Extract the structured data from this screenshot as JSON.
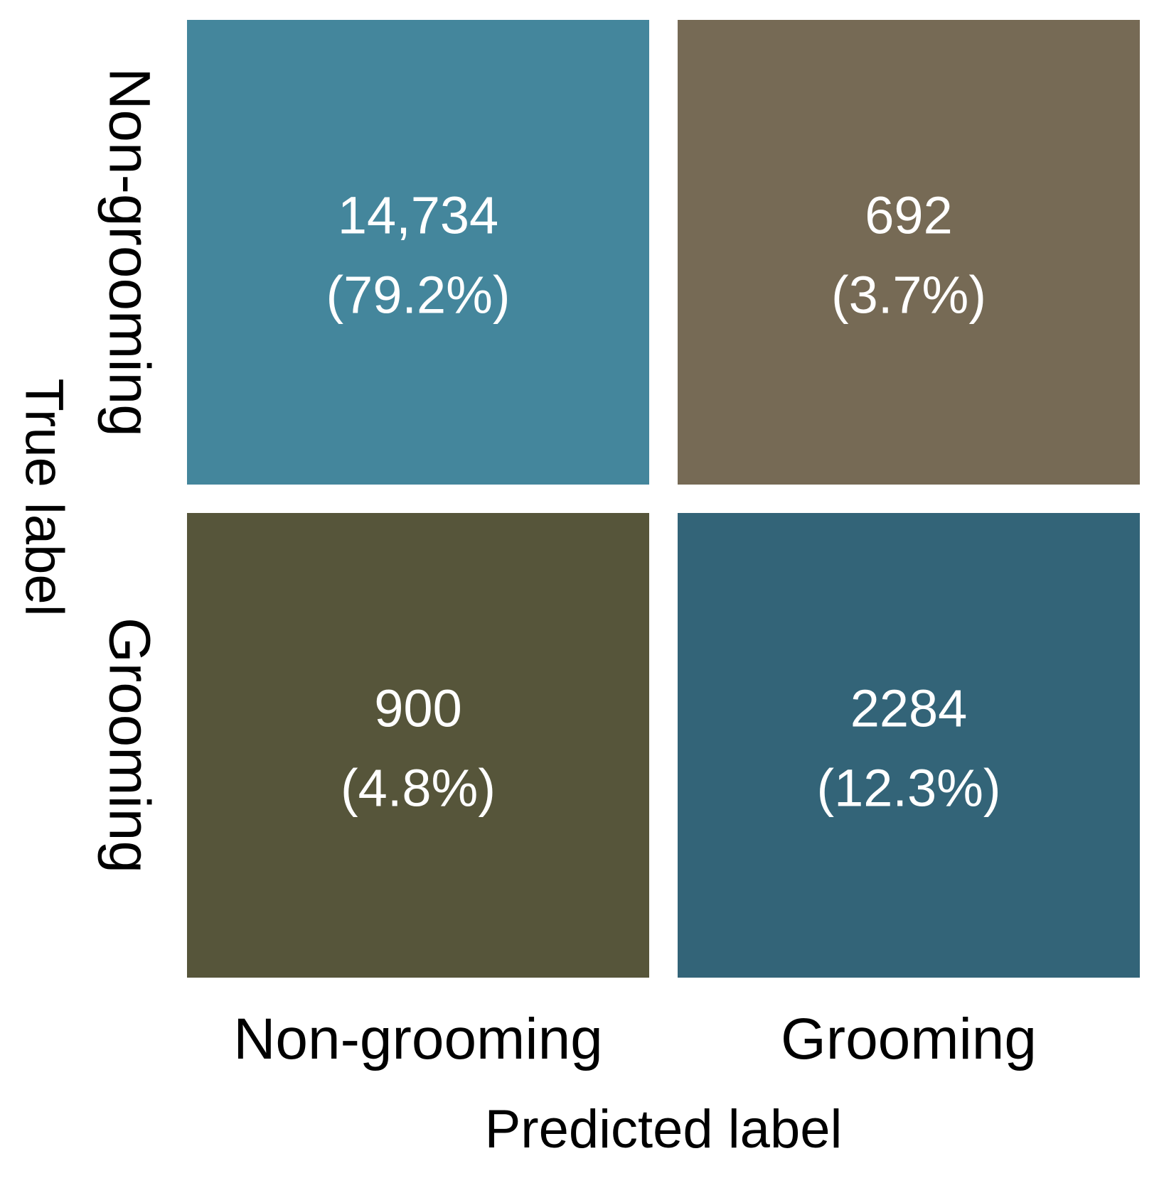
{
  "chart_data": {
    "type": "heatmap",
    "title": "",
    "xlabel": "Predicted label",
    "ylabel": "True label",
    "x_categories": [
      "Non-grooming",
      "Grooming"
    ],
    "y_categories": [
      "Non-grooming",
      "Grooming"
    ],
    "cells": [
      {
        "true": "Non-grooming",
        "predicted": "Non-grooming",
        "count": "14,734",
        "percent": "(79.2%)",
        "value": 14734,
        "color": "#44869c"
      },
      {
        "true": "Non-grooming",
        "predicted": "Grooming",
        "count": "692",
        "percent": "(3.7%)",
        "value": 692,
        "color": "#766a55"
      },
      {
        "true": "Grooming",
        "predicted": "Non-grooming",
        "count": "900",
        "percent": "(4.8%)",
        "value": 900,
        "color": "#56553a"
      },
      {
        "true": "Grooming",
        "predicted": "Grooming",
        "count": "2284",
        "percent": "(12.3%)",
        "value": 2284,
        "color": "#336478"
      }
    ]
  }
}
